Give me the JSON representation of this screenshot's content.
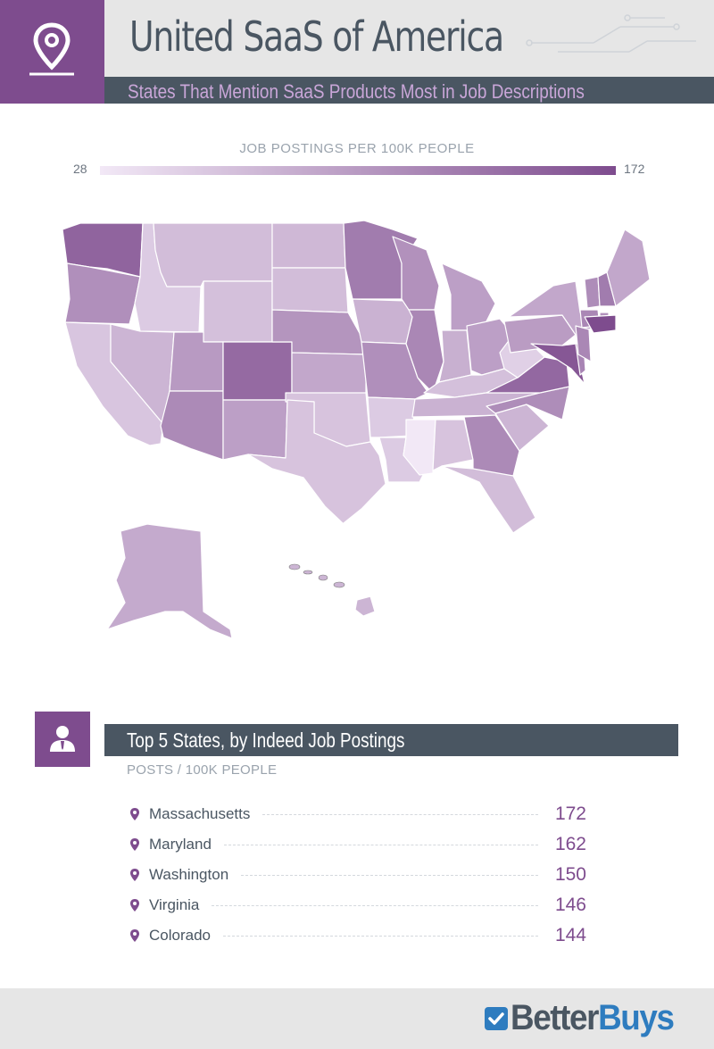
{
  "header": {
    "title": "United SaaS of America",
    "subtitle": "States That Mention SaaS Products Most in Job Descriptions",
    "icon": "map-pin-icon"
  },
  "legend": {
    "title": "JOB POSTINGS PER 100K PEOPLE",
    "min_label": "28",
    "max_label": "172",
    "min_value": 28,
    "max_value": 172,
    "low_color": "#f2e8f6",
    "high_color": "#7e4c8e"
  },
  "map": {
    "states": [
      {
        "name": "Washington",
        "value": 150
      },
      {
        "name": "Oregon",
        "value": 110
      },
      {
        "name": "California",
        "value": 60
      },
      {
        "name": "Idaho",
        "value": 55
      },
      {
        "name": "Nevada",
        "value": 75
      },
      {
        "name": "Montana",
        "value": 68
      },
      {
        "name": "Wyoming",
        "value": 65
      },
      {
        "name": "Utah",
        "value": 100
      },
      {
        "name": "Arizona",
        "value": 115
      },
      {
        "name": "Colorado",
        "value": 144
      },
      {
        "name": "New Mexico",
        "value": 95
      },
      {
        "name": "North Dakota",
        "value": 72
      },
      {
        "name": "South Dakota",
        "value": 68
      },
      {
        "name": "Nebraska",
        "value": 105
      },
      {
        "name": "Kansas",
        "value": 88
      },
      {
        "name": "Oklahoma",
        "value": 62
      },
      {
        "name": "Texas",
        "value": 62
      },
      {
        "name": "Minnesota",
        "value": 128
      },
      {
        "name": "Iowa",
        "value": 78
      },
      {
        "name": "Missouri",
        "value": 110
      },
      {
        "name": "Arkansas",
        "value": 55
      },
      {
        "name": "Louisiana",
        "value": 55
      },
      {
        "name": "Wisconsin",
        "value": 108
      },
      {
        "name": "Illinois",
        "value": 118
      },
      {
        "name": "Michigan",
        "value": 95
      },
      {
        "name": "Indiana",
        "value": 80
      },
      {
        "name": "Ohio",
        "value": 95
      },
      {
        "name": "Kentucky",
        "value": 65
      },
      {
        "name": "Tennessee",
        "value": 78
      },
      {
        "name": "Mississippi",
        "value": 28
      },
      {
        "name": "Alabama",
        "value": 62
      },
      {
        "name": "Georgia",
        "value": 115
      },
      {
        "name": "Florida",
        "value": 68
      },
      {
        "name": "South Carolina",
        "value": 75
      },
      {
        "name": "North Carolina",
        "value": 112
      },
      {
        "name": "Virginia",
        "value": 146
      },
      {
        "name": "West Virginia",
        "value": 50
      },
      {
        "name": "Pennsylvania",
        "value": 98
      },
      {
        "name": "New York",
        "value": 88
      },
      {
        "name": "Maryland",
        "value": 162
      },
      {
        "name": "Delaware",
        "value": 120
      },
      {
        "name": "New Jersey",
        "value": 118
      },
      {
        "name": "Connecticut",
        "value": 118
      },
      {
        "name": "Rhode Island",
        "value": 108
      },
      {
        "name": "Massachusetts",
        "value": 172
      },
      {
        "name": "Vermont",
        "value": 112
      },
      {
        "name": "New Hampshire",
        "value": 128
      },
      {
        "name": "Maine",
        "value": 88
      },
      {
        "name": "Alaska",
        "value": 85
      },
      {
        "name": "Hawaii",
        "value": 75
      }
    ]
  },
  "top5": {
    "title": "Top 5 States, by Indeed Job Postings",
    "subtitle": "POSTS / 100K PEOPLE",
    "icon": "person-icon",
    "items": [
      {
        "state": "Massachusetts",
        "value": "172"
      },
      {
        "state": "Maryland",
        "value": "162"
      },
      {
        "state": "Washington",
        "value": "150"
      },
      {
        "state": "Virginia",
        "value": "146"
      },
      {
        "state": "Colorado",
        "value": "144"
      }
    ]
  },
  "footer": {
    "logo_part1": "Better",
    "logo_part2": "Buys"
  }
}
